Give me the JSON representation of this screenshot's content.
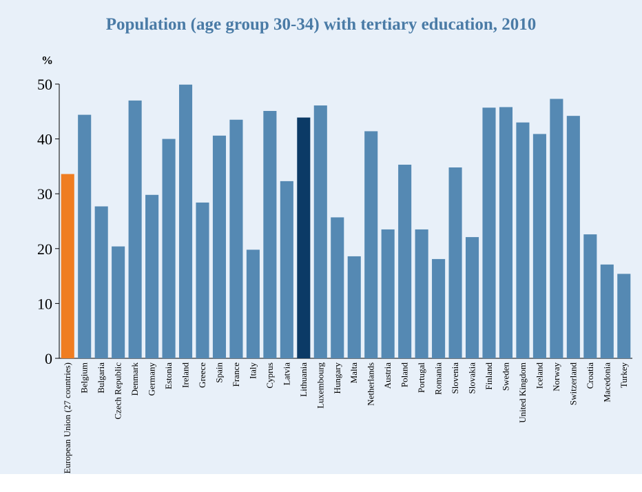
{
  "chart_data": {
    "type": "bar",
    "title": "Population (age group 30-34) with tertiary education, 2010",
    "ylabel": "%",
    "xlabel": "",
    "ylim": [
      0,
      50
    ],
    "yticks": [
      0,
      10,
      20,
      30,
      40,
      50
    ],
    "grid": false,
    "categories": [
      "European Union (27 countries)",
      "Belgium",
      "Bulgaria",
      "Czech Republic",
      "Denmark",
      "Germany",
      "Estonia",
      "Ireland",
      "Greece",
      "Spain",
      "France",
      "Italy",
      "Cyprus",
      "Latvia",
      "Lithuania",
      "Luxembourg",
      "Hungary",
      "Malta",
      "Netherlands",
      "Austria",
      "Poland",
      "Portugal",
      "Romania",
      "Slovenia",
      "Slovakia",
      "Finland",
      "Sweden",
      "United Kingdom",
      "Iceland",
      "Norway",
      "Switzerland",
      "Croatia",
      "Macedonia",
      "Turkey"
    ],
    "values": [
      33.6,
      44.4,
      27.7,
      20.4,
      47.0,
      29.8,
      40.0,
      49.9,
      28.4,
      40.6,
      43.5,
      19.8,
      45.1,
      32.3,
      43.9,
      46.1,
      25.7,
      18.6,
      41.4,
      23.5,
      35.3,
      23.5,
      18.1,
      34.8,
      22.1,
      45.7,
      45.8,
      43.0,
      40.9,
      47.3,
      44.2,
      22.6,
      17.1,
      15.4
    ],
    "colors": {
      "default": "#5589b3",
      "eu": "#ef7d22",
      "highlight": "#0b3a66"
    },
    "highlight": {
      "European Union (27 countries)": "eu",
      "Lithuania": "highlight"
    }
  }
}
